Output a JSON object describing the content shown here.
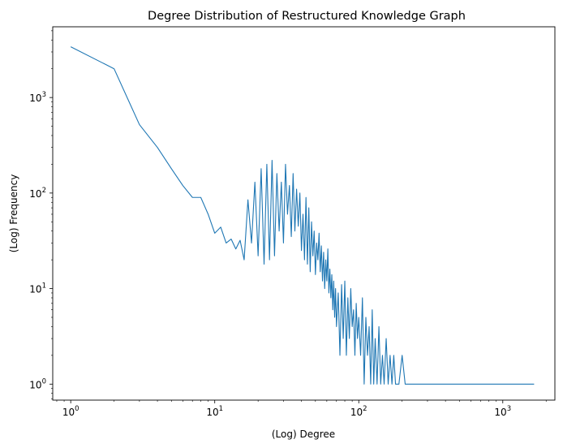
{
  "chart_data": {
    "type": "line",
    "title": "Degree Distribution of Restructured Knowledge Graph",
    "xlabel": "(Log) Degree",
    "ylabel": "(Log) Frequency",
    "xscale": "log",
    "yscale": "log",
    "xlim": [
      0.75,
      2300
    ],
    "ylim": [
      0.68,
      5500
    ],
    "grid": false,
    "legend": "none",
    "series_color": "#1f77b4",
    "x_ticks": [
      {
        "value": 1,
        "base": "10",
        "exp": "0"
      },
      {
        "value": 10,
        "base": "10",
        "exp": "1"
      },
      {
        "value": 100,
        "base": "10",
        "exp": "2"
      },
      {
        "value": 1000,
        "base": "10",
        "exp": "3"
      }
    ],
    "y_ticks": [
      {
        "value": 1,
        "base": "10",
        "exp": "0"
      },
      {
        "value": 10,
        "base": "10",
        "exp": "1"
      },
      {
        "value": 100,
        "base": "10",
        "exp": "2"
      },
      {
        "value": 1000,
        "base": "10",
        "exp": "3"
      }
    ],
    "series": [
      {
        "x": [
          1,
          2,
          3,
          4,
          5,
          6,
          7,
          8,
          9,
          10,
          11,
          12,
          13,
          14,
          15,
          16,
          17,
          18,
          19,
          20,
          21,
          22,
          23,
          24,
          25,
          26,
          27,
          28,
          29,
          30,
          31,
          32,
          33,
          34,
          35,
          36,
          37,
          38,
          39,
          40,
          41,
          42,
          43,
          44,
          45,
          46,
          47,
          48,
          49,
          50,
          51,
          52,
          53,
          54,
          55,
          56,
          57,
          58,
          59,
          60,
          61,
          62,
          63,
          64,
          65,
          66,
          67,
          68,
          69,
          70,
          72,
          74,
          76,
          78,
          80,
          82,
          84,
          86,
          88,
          90,
          92,
          94,
          96,
          98,
          100,
          103,
          106,
          109,
          112,
          115,
          118,
          121,
          124,
          127,
          130,
          134,
          138,
          142,
          146,
          150,
          155,
          160,
          165,
          170,
          175,
          180,
          190,
          200,
          210,
          220,
          240,
          260,
          300,
          320,
          360,
          400,
          1300,
          1650
        ],
        "y": [
          3400,
          2000,
          520,
          300,
          180,
          120,
          90,
          90,
          60,
          38,
          44,
          30,
          33,
          26,
          32,
          20,
          85,
          30,
          130,
          22,
          180,
          18,
          200,
          20,
          220,
          22,
          160,
          40,
          130,
          30,
          200,
          60,
          120,
          35,
          160,
          40,
          110,
          45,
          100,
          25,
          60,
          20,
          90,
          18,
          70,
          15,
          50,
          22,
          40,
          14,
          30,
          20,
          38,
          15,
          28,
          12,
          24,
          10,
          20,
          12,
          26,
          9,
          16,
          8,
          14,
          6,
          12,
          5,
          10,
          4,
          9,
          2,
          11,
          3,
          12,
          2,
          8,
          3,
          10,
          4,
          6,
          2,
          7,
          3,
          5,
          2,
          8,
          1,
          5,
          2,
          4,
          1,
          6,
          1,
          3,
          1,
          4,
          1,
          2,
          1,
          3,
          1,
          2,
          1,
          2,
          1,
          1,
          2,
          1,
          1,
          1,
          1,
          1,
          1,
          1,
          1,
          1,
          1
        ]
      }
    ]
  }
}
